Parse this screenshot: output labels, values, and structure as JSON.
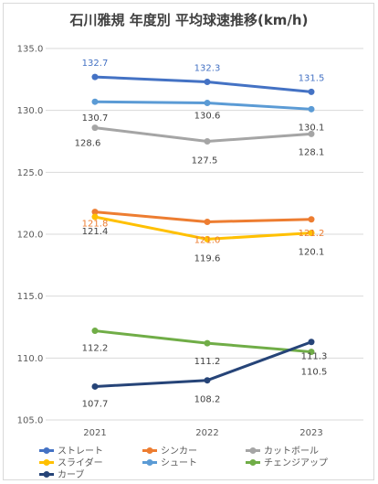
{
  "chart_data": {
    "type": "line",
    "title": "石川雅規 年度別 平均球速推移(km/h)",
    "categories": [
      "2021",
      "2022",
      "2023"
    ],
    "ylim": [
      105,
      135
    ],
    "yticks": [
      "105.0",
      "110.0",
      "115.0",
      "120.0",
      "125.0",
      "130.0",
      "135.0"
    ],
    "grid": true,
    "legend_position": "bottom",
    "series": [
      {
        "name": "ストレート",
        "color": "#4472C4",
        "values": [
          132.7,
          132.3,
          131.5
        ],
        "labels": [
          "132.7",
          "132.3",
          "131.5"
        ],
        "label_color": "#4472C4"
      },
      {
        "name": "シンカー",
        "color": "#ED7D31",
        "values": [
          121.8,
          121.0,
          121.2
        ],
        "labels": [
          "121.8",
          "121.0",
          "121.2"
        ],
        "label_color": "#ED7D31"
      },
      {
        "name": "カットボール",
        "color": "#A5A5A5",
        "values": [
          128.6,
          127.5,
          128.1
        ],
        "labels": [
          "128.6",
          "127.5",
          "128.1"
        ],
        "label_color": "#404040"
      },
      {
        "name": "スライダー",
        "color": "#FFC000",
        "values": [
          121.4,
          119.6,
          120.1
        ],
        "labels": [
          "121.4",
          "119.6",
          "120.1"
        ],
        "label_color": "#404040"
      },
      {
        "name": "シュート",
        "color": "#5B9BD5",
        "values": [
          130.7,
          130.6,
          130.1
        ],
        "labels": [
          "130.7",
          "130.6",
          "130.1"
        ],
        "label_color": "#404040"
      },
      {
        "name": "チェンジアップ",
        "color": "#70AD47",
        "values": [
          112.2,
          111.2,
          110.5
        ],
        "labels": [
          "112.2",
          "111.2",
          "110.5"
        ],
        "label_color": "#404040"
      },
      {
        "name": "カーブ",
        "color": "#264478",
        "values": [
          107.7,
          108.2,
          111.3
        ],
        "labels": [
          "107.7",
          "108.2",
          "111.3"
        ],
        "label_color": "#404040"
      }
    ]
  }
}
